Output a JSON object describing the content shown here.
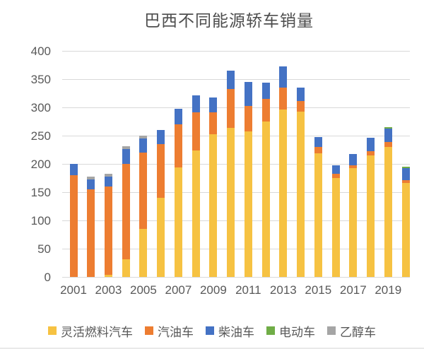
{
  "chart": {
    "title": "巴西不同能源轿车销量"
  },
  "chart_data": {
    "type": "bar",
    "stacked": true,
    "title": "巴西不同能源轿车销量",
    "categories": [
      2001,
      2002,
      2003,
      2004,
      2005,
      2006,
      2007,
      2008,
      2009,
      2010,
      2011,
      2012,
      2013,
      2014,
      2015,
      2016,
      2017,
      2018,
      2019,
      2020
    ],
    "x_tick_labels": [
      "2001",
      "2003",
      "2005",
      "2007",
      "2009",
      "2011",
      "2013",
      "2015",
      "2017",
      "2019"
    ],
    "series": [
      {
        "key": "flex-fuel",
        "name": "灵活燃料汽车",
        "color": "#F6C242",
        "values": [
          0,
          0,
          4,
          31,
          85,
          140,
          194,
          224,
          252,
          264,
          257,
          275,
          296,
          293,
          219,
          175,
          192,
          215,
          230,
          166
        ]
      },
      {
        "key": "gasoline",
        "name": "汽油车",
        "color": "#ED7D31",
        "values": [
          180,
          155,
          156,
          169,
          135,
          95,
          76,
          67,
          39,
          68,
          46,
          40,
          39,
          18,
          11,
          7,
          5,
          8,
          9,
          5
        ]
      },
      {
        "key": "diesel",
        "name": "柴油车",
        "color": "#4472C4",
        "values": [
          20,
          17,
          17,
          26,
          25,
          25,
          28,
          30,
          27,
          33,
          42,
          29,
          38,
          24,
          17,
          16,
          20,
          23,
          23,
          22
        ]
      },
      {
        "key": "electric",
        "name": "电动车",
        "color": "#70AD47",
        "values": [
          0,
          0,
          0,
          0,
          0,
          0,
          0,
          0,
          0,
          0,
          0,
          0,
          0,
          0,
          0,
          0,
          0,
          0,
          3,
          2
        ]
      },
      {
        "key": "ethanol",
        "name": "乙醇车",
        "color": "#A5A5A5",
        "values": [
          0,
          6,
          6,
          5,
          5,
          0,
          0,
          0,
          0,
          0,
          0,
          0,
          0,
          0,
          0,
          0,
          0,
          0,
          0,
          0
        ]
      }
    ],
    "totals": [
      200,
      178,
      183,
      231,
      250,
      260,
      298,
      321,
      318,
      365,
      345,
      344,
      373,
      335,
      247,
      198,
      217,
      246,
      265,
      195
    ],
    "ylim": [
      0,
      400
    ],
    "ytick_step": 50,
    "yticks": [
      0,
      50,
      100,
      150,
      200,
      250,
      300,
      350,
      400
    ],
    "grid": true,
    "legend_position": "bottom"
  }
}
